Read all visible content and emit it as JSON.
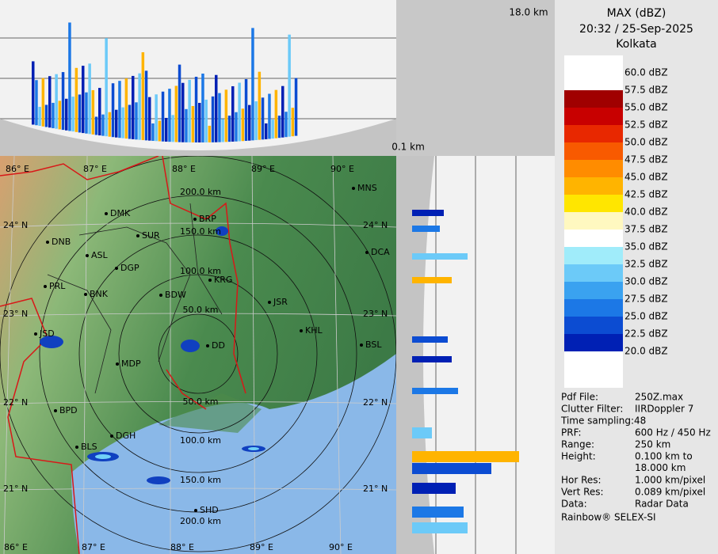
{
  "header": {
    "title": "MAX (dBZ)",
    "datetime": "20:32 / 25-Sep-2025",
    "location": "Kolkata"
  },
  "height_labels": {
    "top": "18.0 km",
    "bottom": "0.1 km"
  },
  "legend": [
    {
      "label": "60.0 dBZ",
      "color": "#ffffff"
    },
    {
      "label": "57.5 dBZ",
      "color": "#a00000"
    },
    {
      "label": "55.0 dBZ",
      "color": "#c80000"
    },
    {
      "label": "52.5 dBZ",
      "color": "#e82800"
    },
    {
      "label": "50.0 dBZ",
      "color": "#f85a00"
    },
    {
      "label": "47.5 dBZ",
      "color": "#ff8c00"
    },
    {
      "label": "45.0 dBZ",
      "color": "#ffb400"
    },
    {
      "label": "42.5 dBZ",
      "color": "#ffe600"
    },
    {
      "label": "40.0 dBZ",
      "color": "#fff8c0"
    },
    {
      "label": "37.5 dBZ",
      "color": "#ffffff"
    },
    {
      "label": "35.0 dBZ",
      "color": "#a0ecfa"
    },
    {
      "label": "32.5 dBZ",
      "color": "#6ccaf8"
    },
    {
      "label": "30.0 dBZ",
      "color": "#3aa2f0"
    },
    {
      "label": "27.5 dBZ",
      "color": "#1c78e6"
    },
    {
      "label": "25.0 dBZ",
      "color": "#0c4cd2"
    },
    {
      "label": "22.5 dBZ",
      "color": "#0020b4"
    },
    {
      "label": "20.0 dBZ",
      "color": "#001090"
    }
  ],
  "map": {
    "cities": [
      "MNS",
      "DMK",
      "BRP",
      "SUR",
      "DNB",
      "ASL",
      "DCA",
      "DGP",
      "KRG",
      "PRL",
      "BNK",
      "BDW",
      "JSR",
      "KHL",
      "BSL",
      "JSD",
      "DD",
      "MDP",
      "BPD",
      "DGH",
      "BLS",
      "SHD"
    ],
    "lon_labels": [
      "86° E",
      "87° E",
      "88° E",
      "89° E",
      "90° E"
    ],
    "lat_labels": [
      "24° N",
      "23° N",
      "22° N",
      "21° N"
    ],
    "range_labels": [
      "200.0 km",
      "150.0 km",
      "100.0 km",
      "50.0 km"
    ]
  },
  "info": {
    "rows": [
      {
        "label": "Pdf File:",
        "value": [
          "250Z.max"
        ]
      },
      {
        "label": "Clutter Filter:",
        "value": [
          "IIRDoppler 7"
        ]
      },
      {
        "label": "Time sampling:",
        "value": [
          "48"
        ]
      },
      {
        "label": "PRF:",
        "value": [
          "600 Hz / 450 Hz"
        ]
      },
      {
        "label": "Range:",
        "value": [
          "250 km"
        ]
      },
      {
        "label": "Height:",
        "value": [
          "0.100 km to",
          "18.000 km"
        ]
      },
      {
        "label": "Hor Res:",
        "value": [
          "1.000 km/pixel"
        ]
      },
      {
        "label": "Vert Res:",
        "value": [
          "0.089 km/pixel"
        ]
      },
      {
        "label": "Data:",
        "value": [
          "Radar Data"
        ]
      }
    ],
    "footer": "Rainbow® SELEX-SI"
  }
}
